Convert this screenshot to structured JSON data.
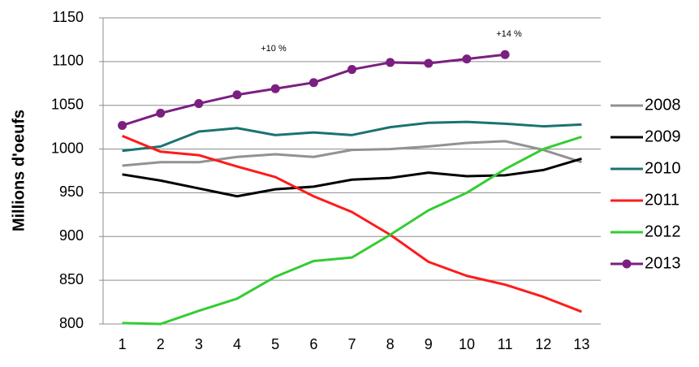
{
  "chart_data": {
    "type": "line",
    "y_label": "Millions d'oeufs",
    "categories": [
      "1",
      "2",
      "3",
      "4",
      "5",
      "6",
      "7",
      "8",
      "9",
      "10",
      "11",
      "12",
      "13"
    ],
    "series": [
      {
        "name": "2008",
        "color": "#929292",
        "values": [
          981,
          985,
          985,
          991,
          994,
          991,
          999,
          1000,
          1003,
          1007,
          1009,
          999,
          985
        ]
      },
      {
        "name": "2009",
        "color": "#000000",
        "values": [
          971,
          964,
          955,
          946,
          954,
          957,
          965,
          967,
          973,
          969,
          970,
          976,
          989
        ]
      },
      {
        "name": "2010",
        "color": "#1a7371",
        "values": [
          998,
          1003,
          1020,
          1024,
          1016,
          1019,
          1016,
          1025,
          1030,
          1031,
          1029,
          1026,
          1028
        ]
      },
      {
        "name": "2011",
        "color": "#ff1a1a",
        "values": [
          1015,
          997,
          993,
          980,
          968,
          946,
          928,
          902,
          871,
          855,
          845,
          831,
          814
        ]
      },
      {
        "name": "2012",
        "color": "#33cc33",
        "values": [
          801,
          800,
          815,
          829,
          854,
          872,
          876,
          902,
          930,
          950,
          977,
          1000,
          1014
        ]
      },
      {
        "name": "2013",
        "color": "#7b1f80",
        "marker": "circle",
        "values": [
          1027,
          1041,
          1052,
          1062,
          1069,
          1076,
          1091,
          1099,
          1098,
          1103,
          1108,
          null,
          null
        ]
      }
    ],
    "annotations": [
      "+10 %",
      "+14 %"
    ],
    "ylim": [
      800,
      1150
    ],
    "yticks": [
      800,
      850,
      900,
      950,
      1000,
      1050,
      1100,
      1150
    ],
    "grid": true,
    "legend": "right"
  }
}
